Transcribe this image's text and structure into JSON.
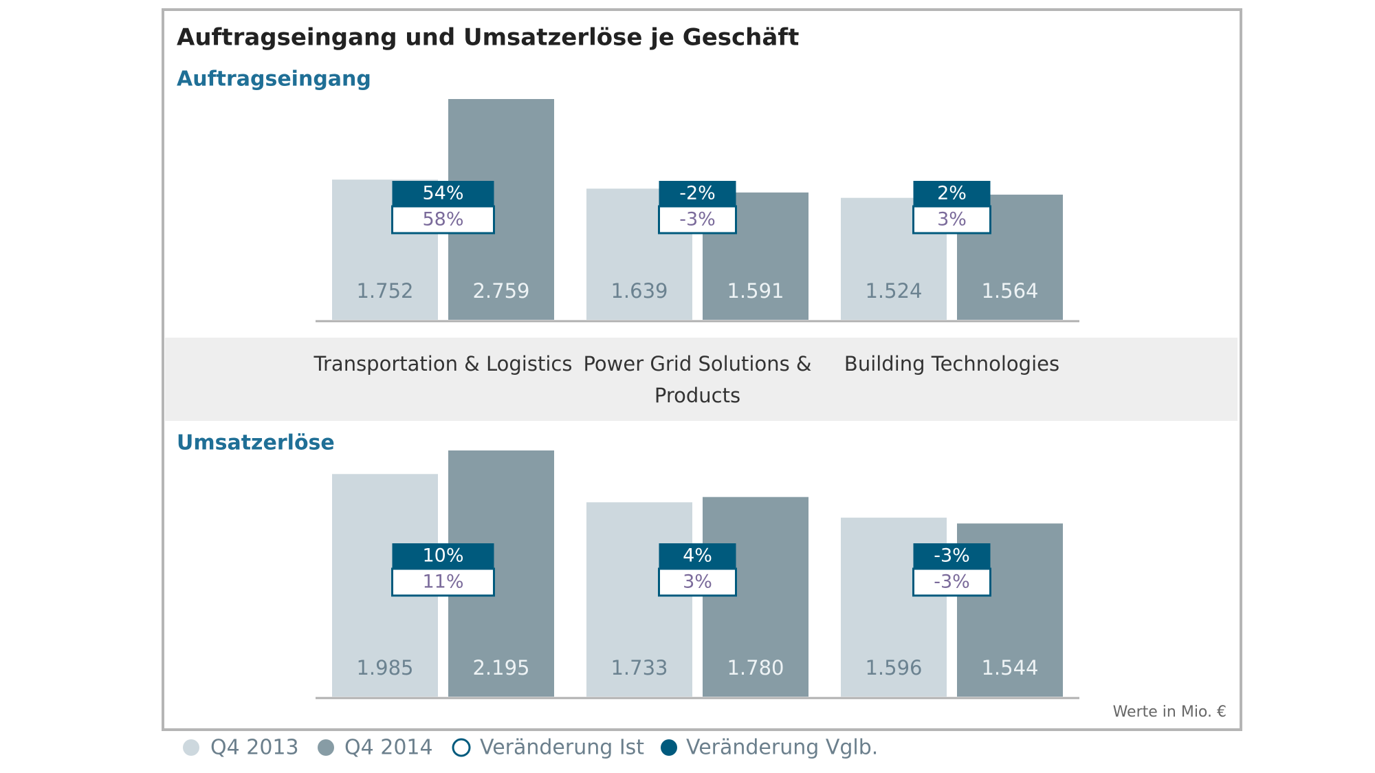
{
  "title": "Auftragseingang und Umsatzerlöse je Geschäft",
  "note": "Werte in Mio. €",
  "chart_data": {
    "type": "bar",
    "categories": [
      "Transportation & Logistics",
      "Power Grid Solutions & Products",
      "Building Technologies"
    ],
    "legend": [
      {
        "name": "Q4 2013",
        "color": "#cdd8de"
      },
      {
        "name": "Q4 2014",
        "color": "#879ca5"
      },
      {
        "name": "Veränderung Ist",
        "color": "#ffffff"
      },
      {
        "name": "Veränderung Vglb.",
        "color": "#005a7d"
      }
    ],
    "panels": [
      {
        "title": "Auftragseingang",
        "series": [
          {
            "values": [
              1752,
              1639,
              1524
            ],
            "value_labels": [
              "1.752",
              "1.639",
              "1.524"
            ]
          },
          {
            "values": [
              2759,
              1591,
              1564
            ],
            "value_labels": [
              "2.759",
              "1.591",
              "1.564"
            ]
          }
        ],
        "changes": [
          {
            "values": [
              58,
              -3,
              3
            ],
            "value_labels": [
              "58%",
              "-3%",
              "3%"
            ]
          },
          {
            "values": [
              54,
              -2,
              2
            ],
            "value_labels": [
              "54%",
              "-2%",
              "2%"
            ]
          }
        ]
      },
      {
        "title": "Umsatzerlöse",
        "series": [
          {
            "values": [
              1985,
              1733,
              1596
            ],
            "value_labels": [
              "1.985",
              "1.733",
              "1.596"
            ]
          },
          {
            "values": [
              2195,
              1780,
              1544
            ],
            "value_labels": [
              "2.195",
              "1.780",
              "1.544"
            ]
          }
        ],
        "changes": [
          {
            "values": [
              11,
              3,
              -3
            ],
            "value_labels": [
              "11%",
              "3%",
              "-3%"
            ]
          },
          {
            "values": [
              10,
              4,
              -3
            ],
            "value_labels": [
              "10%",
              "4%",
              "-3%"
            ]
          }
        ]
      }
    ]
  }
}
